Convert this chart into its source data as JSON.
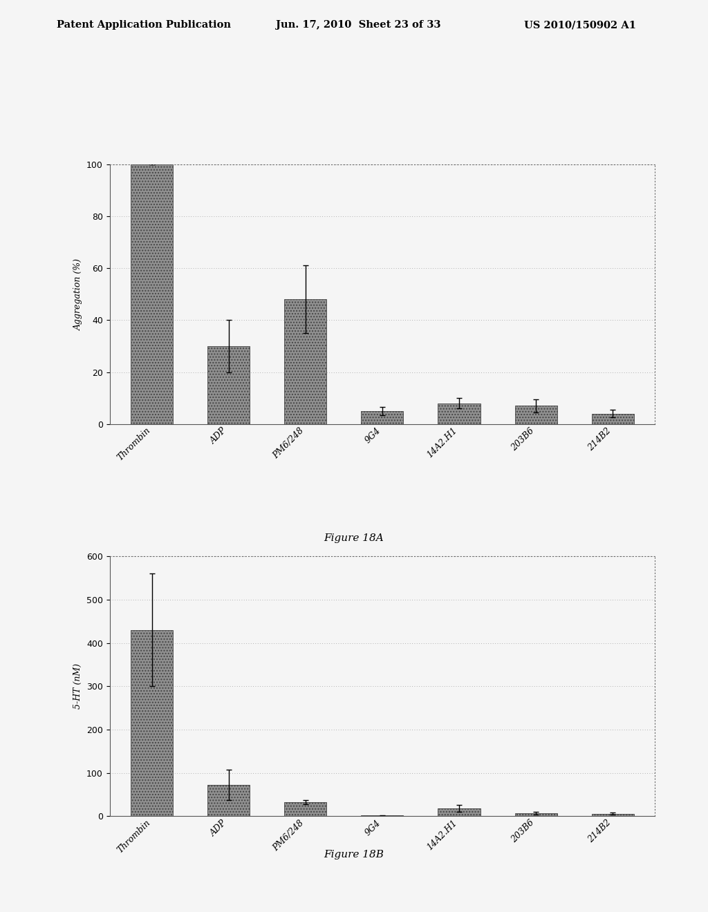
{
  "header_left": "Patent Application Publication",
  "header_mid": "Jun. 17, 2010  Sheet 23 of 33",
  "header_right": "US 2010/150902 A1",
  "figure_A": {
    "title": "Figure 18A",
    "categories": [
      "Thrombin",
      "ADP",
      "PM6/248",
      "9G4",
      "14A2.H1",
      "203B6",
      "214B2"
    ],
    "values": [
      100,
      30,
      48,
      5,
      8,
      7,
      4
    ],
    "errors": [
      0,
      10,
      13,
      1.5,
      2,
      2.5,
      1.5
    ],
    "ylabel": "Aggregation (%)",
    "ylim": [
      0,
      100
    ],
    "yticks": [
      0,
      20,
      40,
      60,
      80,
      100
    ]
  },
  "figure_B": {
    "title": "Figure 18B",
    "categories": [
      "Thrombin",
      "ADP",
      "PM6/248",
      "9G4",
      "14A2.H1",
      "203B6",
      "214B2"
    ],
    "values": [
      430,
      72,
      32,
      2,
      18,
      7,
      6
    ],
    "errors": [
      130,
      35,
      5,
      1,
      8,
      3,
      2
    ],
    "ylabel": "5-HT (nM)",
    "ylim": [
      0,
      600
    ],
    "yticks": [
      0,
      100,
      200,
      300,
      400,
      500,
      600
    ]
  },
  "bar_color": "#909090",
  "bar_hatch": "....",
  "bar_width": 0.55,
  "background_color": "#f5f5f5",
  "fig_label_fontsize": 11
}
